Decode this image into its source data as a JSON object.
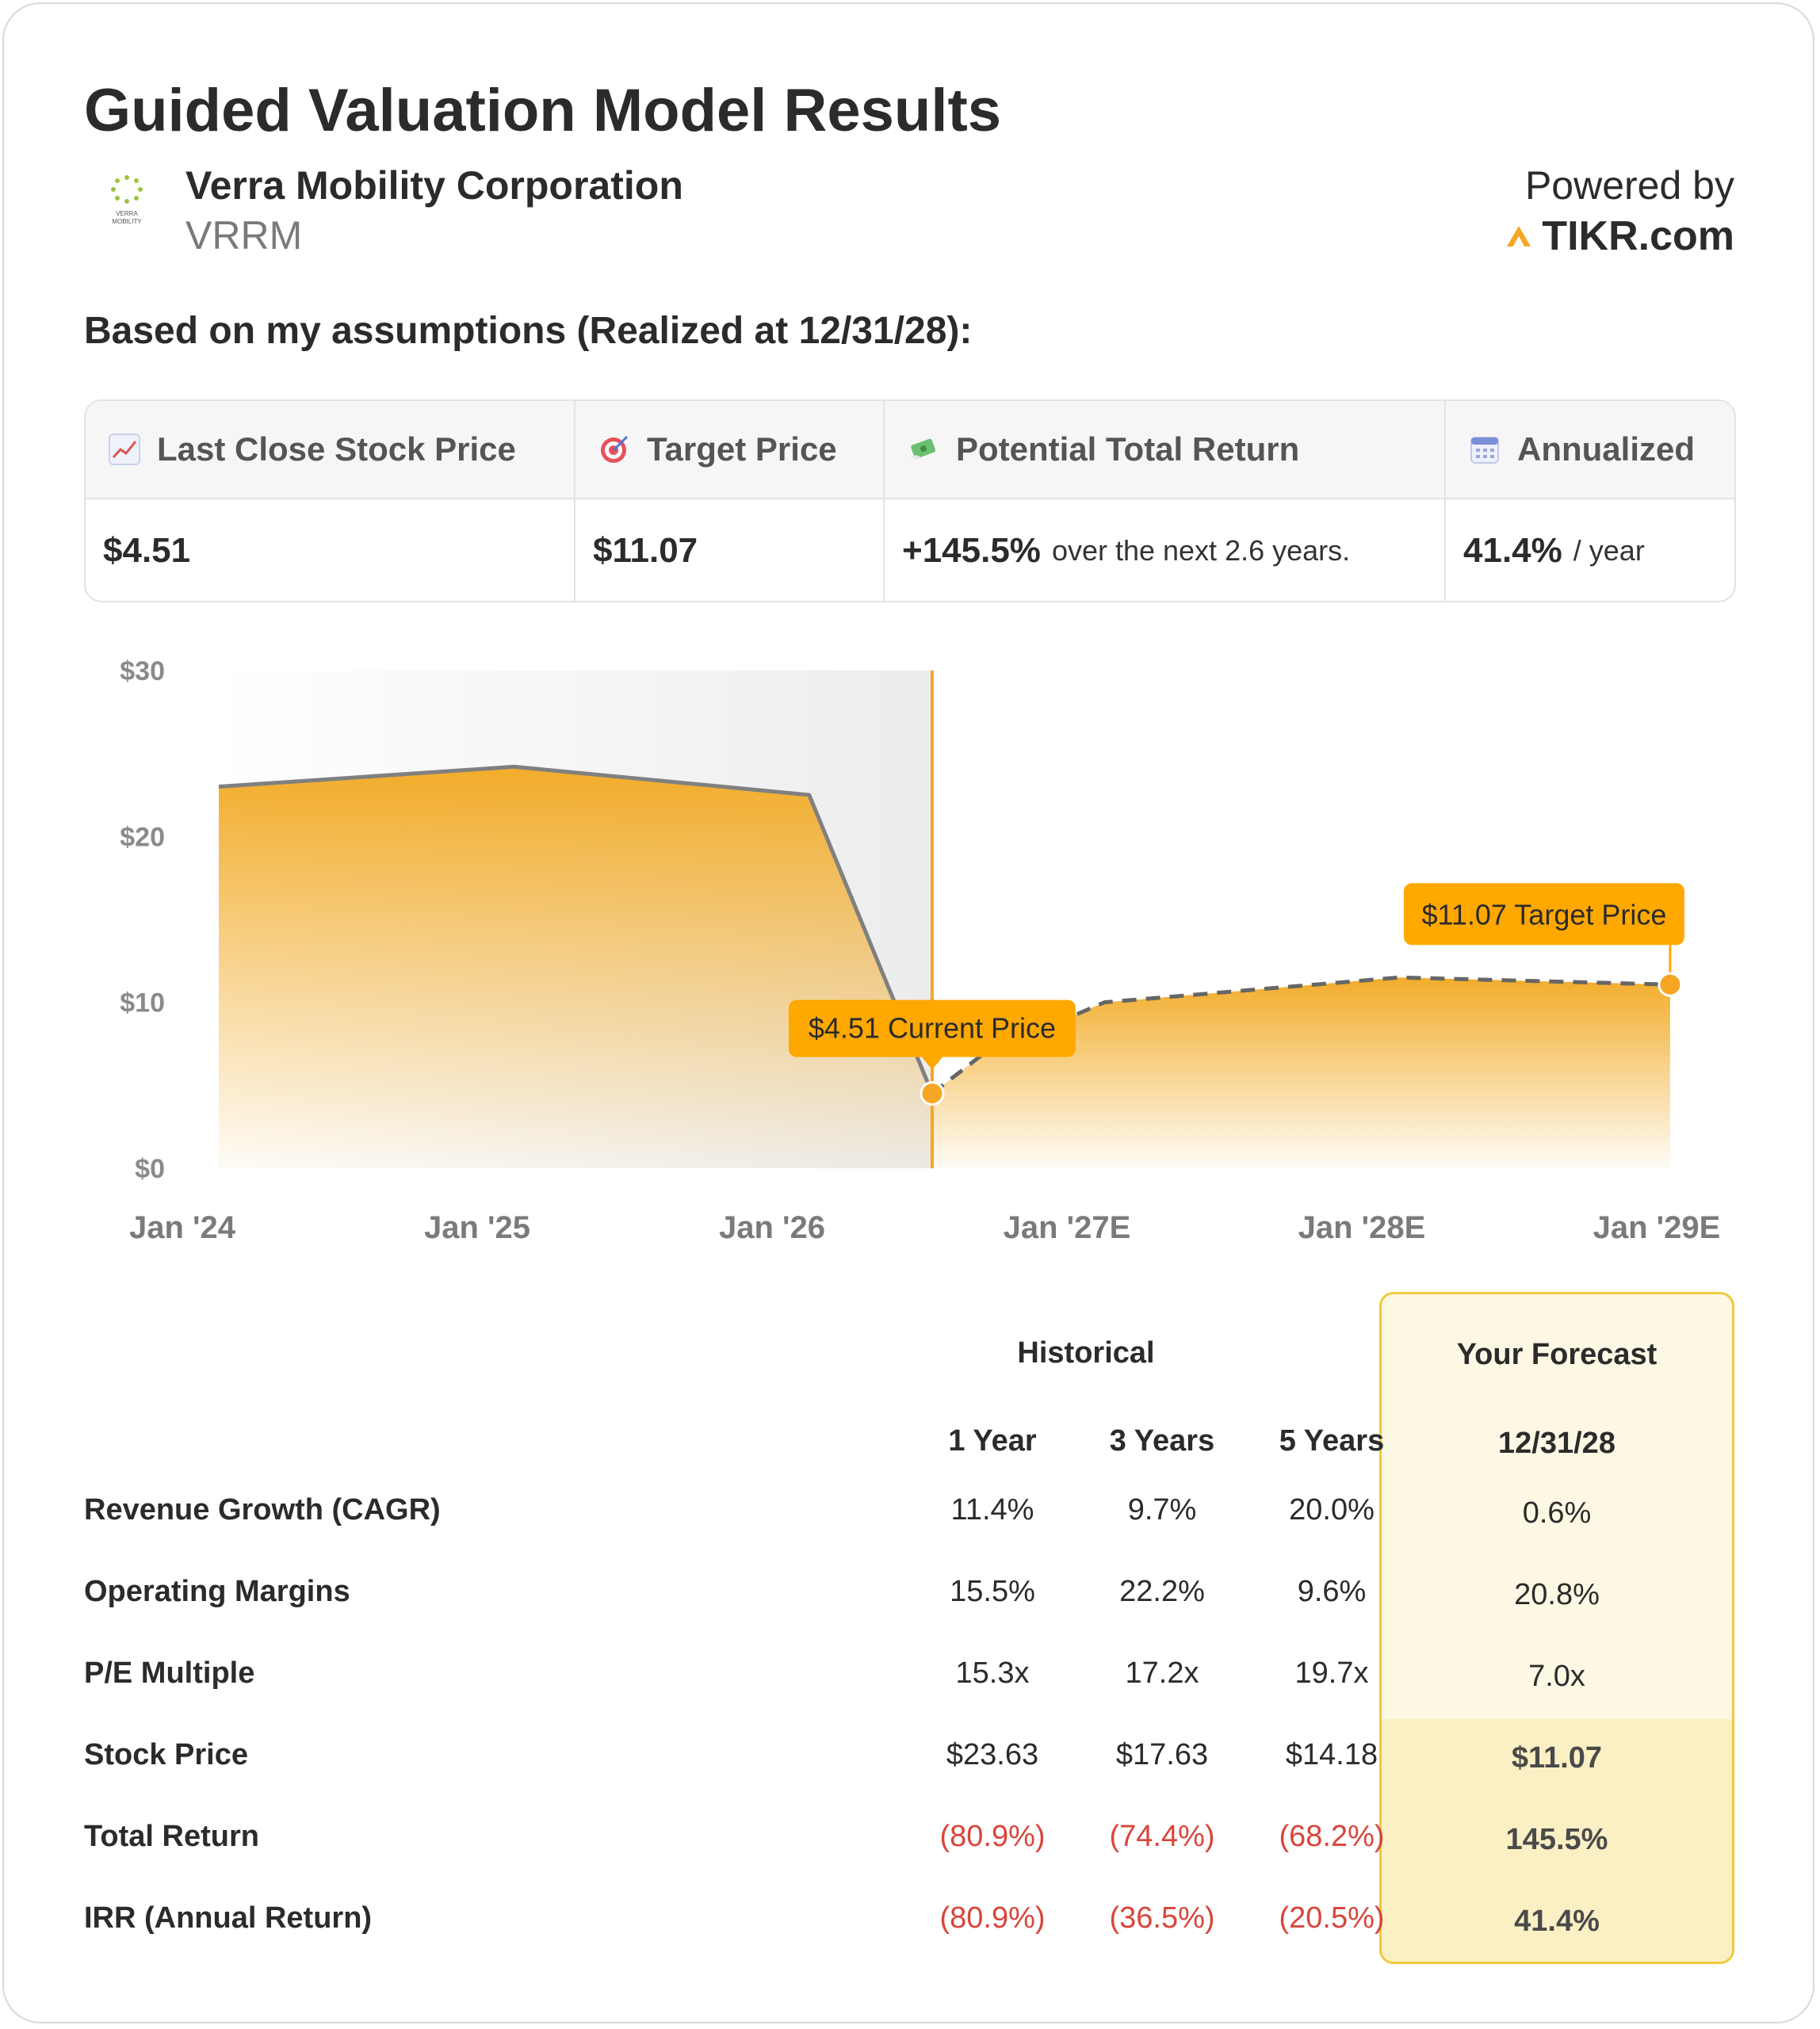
{
  "header": {
    "title": "Guided Valuation Model Results",
    "company_name": "Verra Mobility Corporation",
    "ticker": "VRRM",
    "logo_text": "VERRA MOBILITY",
    "powered_by": "Powered by",
    "brand": "TIKR.com"
  },
  "subtitle": "Based on my assumptions (Realized at 12/31/28):",
  "summary": {
    "last_close": {
      "label": "Last Close Stock Price",
      "value": "$4.51",
      "icon": "chart-increasing-icon"
    },
    "target": {
      "label": "Target Price",
      "value": "$11.07",
      "icon": "target-icon"
    },
    "total_return": {
      "label": "Potential Total Return",
      "value": "+145.5%",
      "suffix": "over the next 2.6 years.",
      "icon": "money-wings-icon"
    },
    "annualized": {
      "label": "Annualized",
      "value": "41.4%",
      "suffix": "/ year",
      "icon": "calendar-icon"
    }
  },
  "chart_data": {
    "type": "area",
    "y_ticks": [
      "$30",
      "$20",
      "$10",
      "$0"
    ],
    "x_ticks": [
      "Jan '24",
      "Jan '25",
      "Jan '26",
      "Jan '27E",
      "Jan '28E",
      "Jan '29E"
    ],
    "ylim": [
      0,
      30
    ],
    "grid": false,
    "historical": {
      "x": [
        "2024-01",
        "2025-01",
        "2026-01",
        "2026-06"
      ],
      "values": [
        23.0,
        24.2,
        22.5,
        4.51
      ]
    },
    "forecast": {
      "x": [
        "2026-06",
        "2026-08",
        "2027-01",
        "2028-01",
        "2028-12"
      ],
      "values": [
        4.51,
        6.8,
        10.0,
        11.5,
        11.07
      ]
    },
    "current_price_label": "$4.51 Current Price",
    "target_price_label": "$11.07 Target Price",
    "colors": {
      "fill": "#f2ac2a",
      "line": "#808080",
      "marker": "#f5a623",
      "callout": "#ffa800"
    }
  },
  "metrics": {
    "historical_header": "Historical",
    "forecast_header": "Your Forecast",
    "periods": [
      "1 Year",
      "3 Years",
      "5 Years"
    ],
    "forecast_date": "12/31/28",
    "rows": [
      {
        "label": "Revenue Growth (CAGR)",
        "values": [
          "11.4%",
          "9.7%",
          "20.0%"
        ],
        "forecast": "0.6%"
      },
      {
        "label": "Operating Margins",
        "values": [
          "15.5%",
          "22.2%",
          "9.6%"
        ],
        "forecast": "20.8%"
      },
      {
        "label": "P/E Multiple",
        "values": [
          "15.3x",
          "17.2x",
          "19.7x"
        ],
        "forecast": "7.0x"
      },
      {
        "label": "Stock Price",
        "values": [
          "$23.63",
          "$17.63",
          "$14.18"
        ],
        "forecast": "$11.07"
      },
      {
        "label": "Total Return",
        "values": [
          "(80.9%)",
          "(74.4%)",
          "(68.2%)"
        ],
        "forecast": "145.5%"
      },
      {
        "label": "IRR (Annual Return)",
        "values": [
          "(80.9%)",
          "(36.5%)",
          "(20.5%)"
        ],
        "forecast": "41.4%"
      }
    ]
  }
}
